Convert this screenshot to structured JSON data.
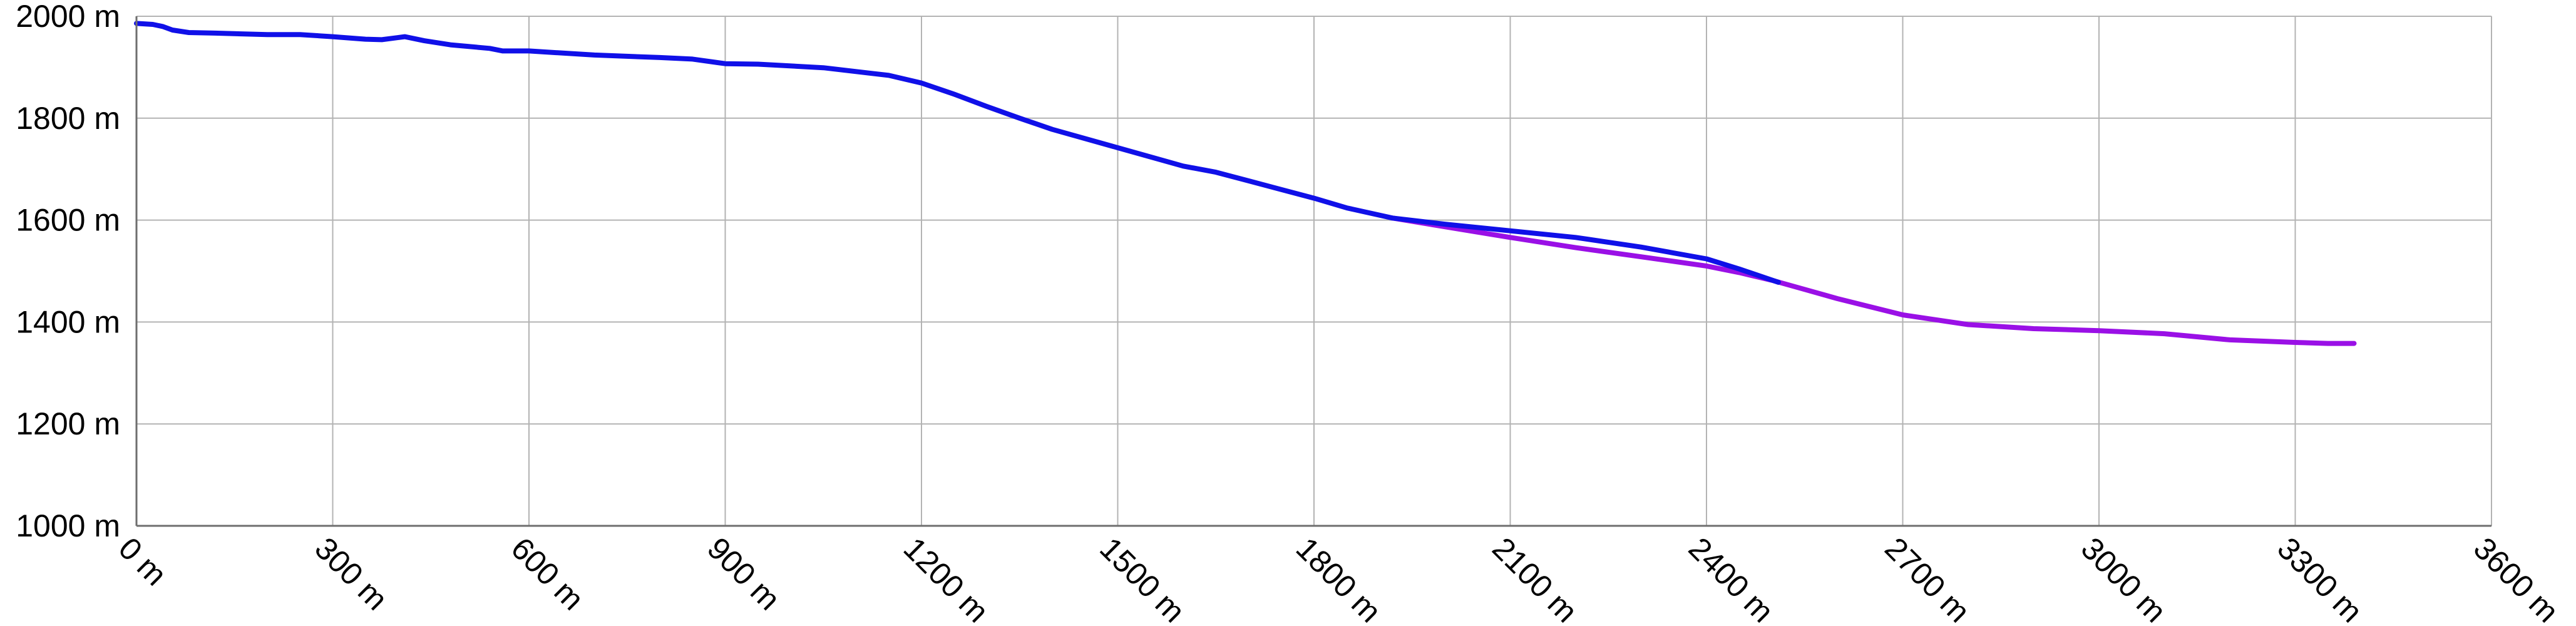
{
  "chart_data": {
    "type": "line",
    "title": "",
    "xlabel": "",
    "ylabel": "",
    "xlim": [
      0,
      3600
    ],
    "ylim": [
      1000,
      2000
    ],
    "grid": true,
    "x_ticks": [
      {
        "value": 0,
        "label": "0 m"
      },
      {
        "value": 300,
        "label": "300 m"
      },
      {
        "value": 600,
        "label": "600 m"
      },
      {
        "value": 900,
        "label": "900 m"
      },
      {
        "value": 1200,
        "label": "1200 m"
      },
      {
        "value": 1500,
        "label": "1500 m"
      },
      {
        "value": 1800,
        "label": "1800 m"
      },
      {
        "value": 2100,
        "label": "2100 m"
      },
      {
        "value": 2400,
        "label": "2400 m"
      },
      {
        "value": 2700,
        "label": "2700 m"
      },
      {
        "value": 3000,
        "label": "3000 m"
      },
      {
        "value": 3300,
        "label": "3300 m"
      },
      {
        "value": 3600,
        "label": "3600 m"
      }
    ],
    "y_ticks": [
      {
        "value": 1000,
        "label": "1000 m"
      },
      {
        "value": 1200,
        "label": "1200 m"
      },
      {
        "value": 1400,
        "label": "1400 m"
      },
      {
        "value": 1600,
        "label": "1600 m"
      },
      {
        "value": 1800,
        "label": "1800 m"
      },
      {
        "value": 2000,
        "label": "2000 m"
      }
    ],
    "series": [
      {
        "color": "#1010e8",
        "points": [
          [
            0,
            1986
          ],
          [
            25,
            1984
          ],
          [
            40,
            1980
          ],
          [
            55,
            1973
          ],
          [
            80,
            1968
          ],
          [
            120,
            1967
          ],
          [
            200,
            1964
          ],
          [
            250,
            1964
          ],
          [
            300,
            1960
          ],
          [
            350,
            1955
          ],
          [
            375,
            1954
          ],
          [
            410,
            1960
          ],
          [
            440,
            1952
          ],
          [
            480,
            1944
          ],
          [
            540,
            1937
          ],
          [
            560,
            1932
          ],
          [
            600,
            1932
          ],
          [
            700,
            1924
          ],
          [
            800,
            1919
          ],
          [
            850,
            1916
          ],
          [
            900,
            1907
          ],
          [
            950,
            1906
          ],
          [
            1050,
            1899
          ],
          [
            1150,
            1884
          ],
          [
            1200,
            1869
          ],
          [
            1250,
            1847
          ],
          [
            1300,
            1823
          ],
          [
            1350,
            1800
          ],
          [
            1400,
            1778
          ],
          [
            1500,
            1742
          ],
          [
            1600,
            1706
          ],
          [
            1650,
            1694
          ],
          [
            1700,
            1677
          ],
          [
            1800,
            1643
          ],
          [
            1850,
            1624
          ],
          [
            1920,
            1604
          ],
          [
            2000,
            1592
          ],
          [
            2100,
            1579
          ],
          [
            2200,
            1566
          ],
          [
            2300,
            1547
          ],
          [
            2400,
            1524
          ],
          [
            2450,
            1504
          ],
          [
            2510,
            1478
          ]
        ]
      },
      {
        "color": "#9a10e6",
        "points": [
          [
            1920,
            1604
          ],
          [
            2000,
            1587
          ],
          [
            2100,
            1566
          ],
          [
            2200,
            1546
          ],
          [
            2300,
            1528
          ],
          [
            2400,
            1510
          ],
          [
            2450,
            1497
          ],
          [
            2500,
            1482
          ],
          [
            2550,
            1464
          ],
          [
            2600,
            1446
          ],
          [
            2700,
            1414
          ],
          [
            2800,
            1395
          ],
          [
            2900,
            1387
          ],
          [
            3000,
            1383
          ],
          [
            3100,
            1377
          ],
          [
            3200,
            1365
          ],
          [
            3300,
            1360
          ],
          [
            3350,
            1358
          ],
          [
            3390,
            1358
          ]
        ]
      }
    ]
  }
}
